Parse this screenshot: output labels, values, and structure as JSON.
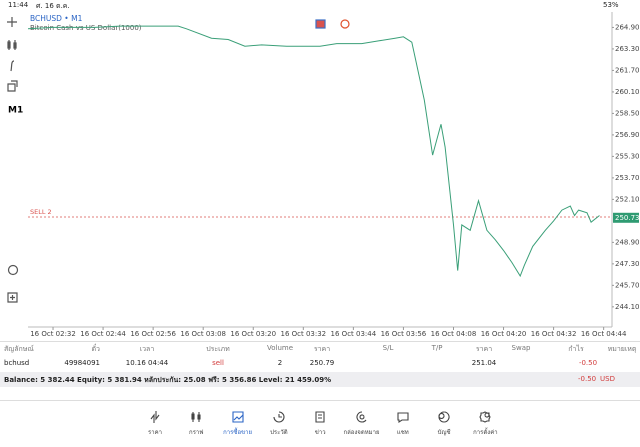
{
  "status_bar": {
    "time": "11:44",
    "date": "ศ. 16 ต.ค.",
    "battery": "53%"
  },
  "toolbar": {
    "timeframe": "M1"
  },
  "chart_data": {
    "type": "line",
    "title": "BCHUSD • M1",
    "subtitle": "Bitcoin Cash vs US Dollar(1000)",
    "color": "#3a9f78",
    "grid": false,
    "x": [
      "16 Oct 02:26",
      "16 Oct 02:32",
      "16 Oct 02:42",
      "16 Oct 02:48",
      "16 Oct 02:56",
      "16 Oct 03:02",
      "16 Oct 03:04",
      "16 Oct 03:10",
      "16 Oct 03:14",
      "16 Oct 03:18",
      "16 Oct 03:22",
      "16 Oct 03:28",
      "16 Oct 03:36",
      "16 Oct 03:40",
      "16 Oct 03:46",
      "16 Oct 03:50",
      "16 Oct 03:54",
      "16 Oct 03:56",
      "16 Oct 03:58",
      "16 Oct 03:59",
      "16 Oct 04:01",
      "16 Oct 04:03",
      "16 Oct 04:05",
      "16 Oct 04:06",
      "16 Oct 04:08",
      "16 Oct 04:09",
      "16 Oct 04:10",
      "16 Oct 04:12",
      "16 Oct 04:14",
      "16 Oct 04:16",
      "16 Oct 04:18",
      "16 Oct 04:20",
      "16 Oct 04:22",
      "16 Oct 04:24",
      "16 Oct 04:25",
      "16 Oct 04:27",
      "16 Oct 04:30",
      "16 Oct 04:32",
      "16 Oct 04:34",
      "16 Oct 04:36",
      "16 Oct 04:37",
      "16 Oct 04:38",
      "16 Oct 04:40",
      "16 Oct 04:41",
      "16 Oct 04:43"
    ],
    "values": [
      264.8,
      264.9,
      264.9,
      265.0,
      265.0,
      265.0,
      264.8,
      264.1,
      264.0,
      263.5,
      263.6,
      263.5,
      263.5,
      263.7,
      263.7,
      263.9,
      264.1,
      264.2,
      263.8,
      262.4,
      259.5,
      255.4,
      257.7,
      256.0,
      250.2,
      246.8,
      250.2,
      249.8,
      252.0,
      249.8,
      249.1,
      248.3,
      247.4,
      246.4,
      247.2,
      248.6,
      249.8,
      250.5,
      251.3,
      251.6,
      250.9,
      251.3,
      251.1,
      250.4,
      250.9
    ],
    "xlim": [
      "16 Oct 02:26",
      "16 Oct 04:46"
    ],
    "xticks": [
      "16 Oct 02:32",
      "16 Oct 02:44",
      "16 Oct 02:56",
      "16 Oct 03:08",
      "16 Oct 03:20",
      "16 Oct 03:32",
      "16 Oct 03:44",
      "16 Oct 03:56",
      "16 Oct 04:08",
      "16 Oct 04:20",
      "16 Oct 04:32",
      "16 Oct 04:44"
    ],
    "ylim": [
      242.6,
      265.9
    ],
    "yticks": [
      {
        "value": 264.9,
        "label": "264.90"
      },
      {
        "value": 263.3,
        "label": "263.30"
      },
      {
        "value": 261.7,
        "label": "261.70"
      },
      {
        "value": 260.1,
        "label": "260.10"
      },
      {
        "value": 258.5,
        "label": "258.50"
      },
      {
        "value": 256.9,
        "label": "256.90"
      },
      {
        "value": 255.3,
        "label": "255.30"
      },
      {
        "value": 253.7,
        "label": "253.70"
      },
      {
        "value": 252.1,
        "label": "252.10"
      },
      {
        "value": 248.9,
        "label": "248.90"
      },
      {
        "value": 247.3,
        "label": "247.30"
      },
      {
        "value": 245.7,
        "label": "245.70"
      },
      {
        "value": 244.1,
        "label": "244.10"
      }
    ],
    "order_line": {
      "label": "SELL 2",
      "value": 250.79
    },
    "current_price": 250.73
  },
  "table": {
    "headers": [
      "สัญลักษณ์",
      "ตั๋ว",
      "เวลา",
      "ประเภท",
      "Volume",
      "ราคา",
      "S/L",
      "T/P",
      "ราคา",
      "Swap",
      "กำไร",
      "หมายเหตุ"
    ],
    "rows": [
      [
        "bchusd",
        "49984091",
        "10.16 04:44",
        "sell",
        "2",
        "250.79",
        null,
        null,
        "251.04",
        null,
        "-0.50",
        null
      ]
    ]
  },
  "summary": {
    "text": "Balance: 5 382.44 Equity: 5 381.94 หลักประกัน: 25.08 ฟรี: 5 356.86 Level: 21 459.09%",
    "profit": "-0.50",
    "currency": "USD"
  },
  "nav": {
    "active": 2,
    "items": [
      "ราคา",
      "กราฟ",
      "การซื้อขาย",
      "ประวัติ",
      "ข่าว",
      "กล่องจดหมาย",
      "แชท",
      "บัญชี",
      "การตั้งค่า"
    ]
  }
}
